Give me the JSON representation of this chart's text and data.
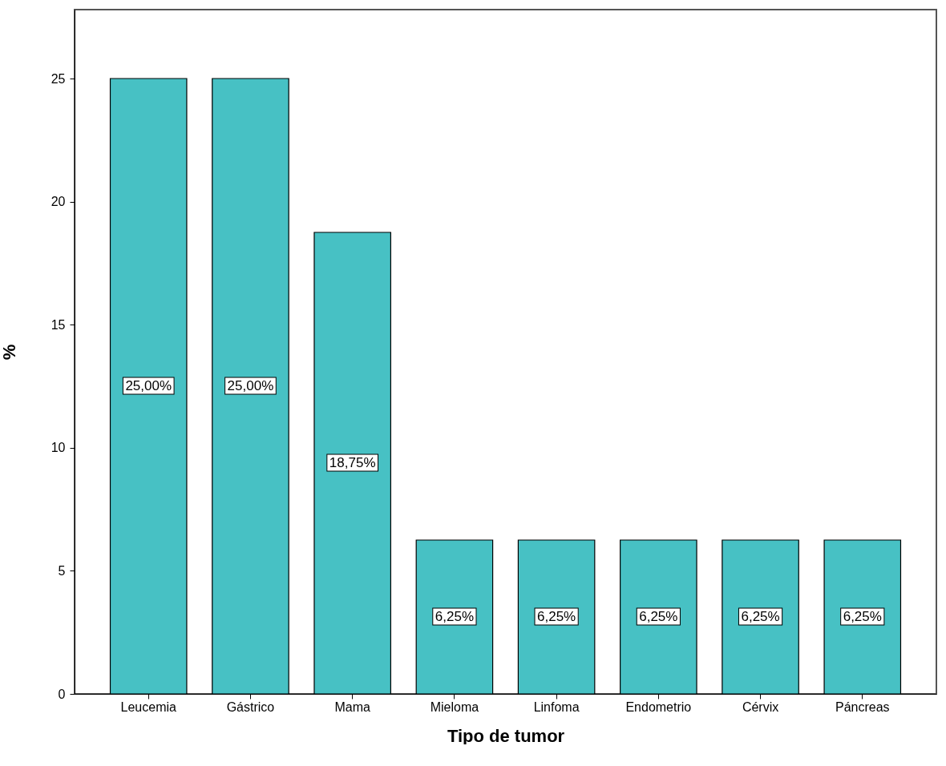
{
  "chart_data": {
    "type": "bar",
    "xlabel": "Tipo de tumor",
    "ylabel": "%",
    "categories": [
      "Leucemia",
      "Gástrico",
      "Mama",
      "Mieloma",
      "Linfoma",
      "Endometrio",
      "Cérvix",
      "Páncreas"
    ],
    "values": [
      25,
      25,
      18.75,
      6.25,
      6.25,
      6.25,
      6.25,
      6.25
    ],
    "value_labels": [
      "25,00%",
      "25,00%",
      "18,75%",
      "6,25%",
      "6,25%",
      "6,25%",
      "6,25%",
      "6,25%"
    ],
    "color": "#47c1c4",
    "ylim": [
      0,
      27.8
    ],
    "yticks": [
      0,
      5,
      10,
      15,
      20,
      25
    ],
    "grid": false
  }
}
